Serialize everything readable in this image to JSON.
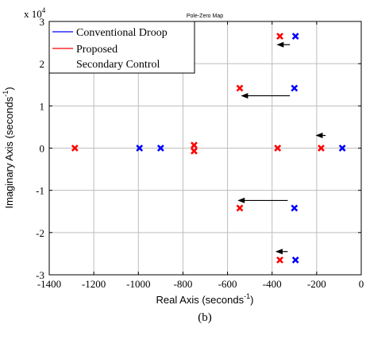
{
  "chart_data": {
    "type": "scatter",
    "title": "Pole-Zero Map",
    "xlabel": "Real Axis (seconds",
    "xlabel_sup": "-1",
    "xlabel_end": ")",
    "ylabel": "Imaginary Axis (seconds",
    "ylabel_sup": "-1",
    "ylabel_end": ")",
    "exponent_prefix": "x 10",
    "exponent_power": "4",
    "caption": "(b)",
    "xlim": [
      -1400,
      0
    ],
    "ylim": [
      -3,
      3
    ],
    "grid": true,
    "legend_position": "top-left",
    "x_ticks": [
      {
        "value": -1400,
        "label": "-1400"
      },
      {
        "value": -1200,
        "label": "-1200"
      },
      {
        "value": -1000,
        "label": "-1000"
      },
      {
        "value": -800,
        "label": "-800"
      },
      {
        "value": -600,
        "label": "-600"
      },
      {
        "value": -400,
        "label": "-400"
      },
      {
        "value": -200,
        "label": "-200"
      },
      {
        "value": 0,
        "label": "0"
      }
    ],
    "y_ticks": [
      {
        "value": -3,
        "label": "-3"
      },
      {
        "value": -2,
        "label": "-2"
      },
      {
        "value": -1,
        "label": "-1"
      },
      {
        "value": 0,
        "label": "0"
      },
      {
        "value": 1,
        "label": "1"
      },
      {
        "value": 2,
        "label": "2"
      },
      {
        "value": 3,
        "label": "3"
      }
    ],
    "legend": [
      {
        "label": "Conventional Droop",
        "color": "#0000ff"
      },
      {
        "label": "Proposed",
        "color": "#ff0000"
      },
      {
        "label": "Secondary Control",
        "color": ""
      }
    ],
    "series": [
      {
        "name": "Conventional Droop",
        "color": "#0000ff",
        "marker": "x",
        "points": [
          {
            "x": -295,
            "y": 2.65
          },
          {
            "x": -295,
            "y": -2.65
          },
          {
            "x": -300,
            "y": 1.42
          },
          {
            "x": -300,
            "y": -1.42
          },
          {
            "x": -995,
            "y": 0
          },
          {
            "x": -900,
            "y": 0
          },
          {
            "x": -85,
            "y": 0
          }
        ]
      },
      {
        "name": "Proposed",
        "color": "#ff0000",
        "marker": "x",
        "points": [
          {
            "x": -365,
            "y": 2.65
          },
          {
            "x": -365,
            "y": -2.65
          },
          {
            "x": -545,
            "y": 1.42
          },
          {
            "x": -545,
            "y": -1.42
          },
          {
            "x": -1285,
            "y": 0
          },
          {
            "x": -750,
            "y": 0.07
          },
          {
            "x": -750,
            "y": -0.07
          },
          {
            "x": -375,
            "y": 0
          },
          {
            "x": -180,
            "y": 0
          }
        ]
      }
    ],
    "arrows": [
      {
        "from": [
          -320,
          2.45
        ],
        "to": [
          -380,
          2.45
        ]
      },
      {
        "from": [
          -320,
          1.24
        ],
        "to": [
          -540,
          1.24
        ]
      },
      {
        "from": [
          -330,
          -1.24
        ],
        "to": [
          -555,
          -1.24
        ]
      },
      {
        "from": [
          -330,
          -2.45
        ],
        "to": [
          -385,
          -2.45
        ]
      },
      {
        "from": [
          -160,
          0.3
        ],
        "to": [
          -205,
          0.3
        ]
      }
    ]
  }
}
